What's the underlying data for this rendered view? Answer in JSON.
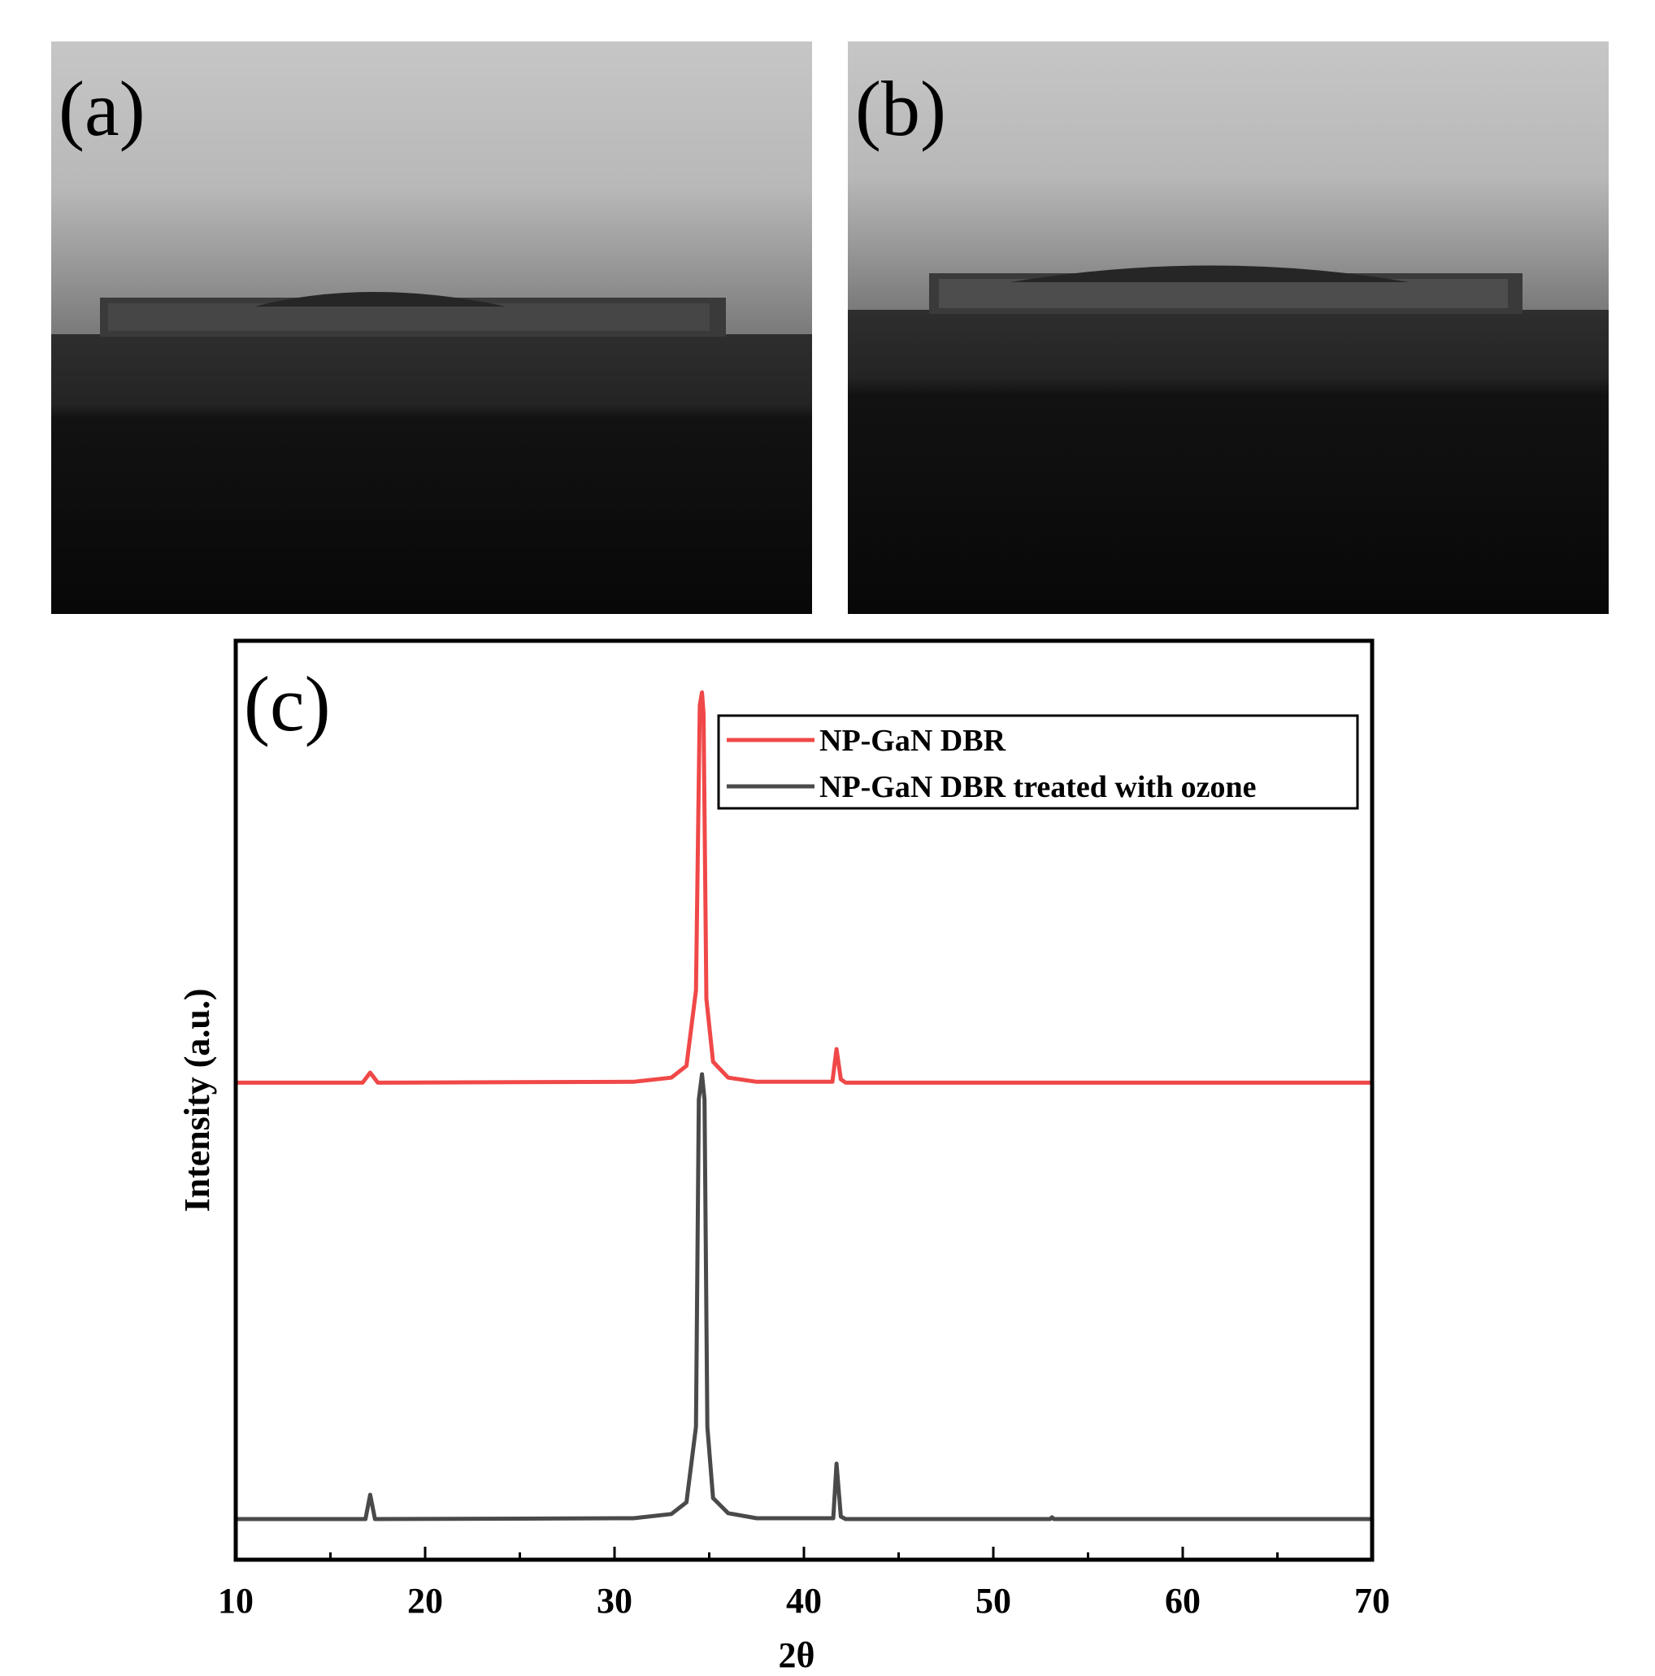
{
  "panels": {
    "a": {
      "label": "(a)"
    },
    "b": {
      "label": "(b)"
    },
    "c": {
      "label": "(c)"
    }
  },
  "colors": {
    "series_1": "#f04848",
    "series_2": "#4a4a4a",
    "axis": "#000000"
  },
  "chart_data": {
    "type": "line",
    "title": "",
    "xlabel": "2θ",
    "ylabel": "Intensity (a.u.)",
    "xlim": [
      10,
      70
    ],
    "xticks": [
      10,
      20,
      30,
      40,
      50,
      60,
      70
    ],
    "xtick_labels": [
      "10",
      "20",
      "30",
      "40",
      "50",
      "60",
      "70"
    ],
    "y_ticks_shown": false,
    "grid": false,
    "legend": {
      "position": "top-right",
      "entries": [
        "NP-GaN DBR",
        "NP-GaN DBR treated with ozone"
      ]
    },
    "series": [
      {
        "name": "NP-GaN DBR",
        "color": "#f04848",
        "baseline": 0.52,
        "points": [
          [
            10,
            0.52
          ],
          [
            16.7,
            0.52
          ],
          [
            17.1,
            0.532
          ],
          [
            17.5,
            0.52
          ],
          [
            31.0,
            0.521
          ],
          [
            33.0,
            0.526
          ],
          [
            33.8,
            0.54
          ],
          [
            34.3,
            0.63
          ],
          [
            34.5,
            0.97
          ],
          [
            34.62,
            0.985
          ],
          [
            34.7,
            0.96
          ],
          [
            34.85,
            0.62
          ],
          [
            35.2,
            0.545
          ],
          [
            36.0,
            0.526
          ],
          [
            37.5,
            0.521
          ],
          [
            41.5,
            0.521
          ],
          [
            41.72,
            0.56
          ],
          [
            41.95,
            0.524
          ],
          [
            42.2,
            0.52
          ],
          [
            70,
            0.52
          ]
        ]
      },
      {
        "name": "NP-GaN DBR treated with ozone",
        "color": "#4a4a4a",
        "baseline": 0.0,
        "points": [
          [
            10,
            0.0
          ],
          [
            16.85,
            0.0
          ],
          [
            17.1,
            0.029
          ],
          [
            17.35,
            0.0
          ],
          [
            31.0,
            0.001
          ],
          [
            33.0,
            0.006
          ],
          [
            33.8,
            0.02
          ],
          [
            34.3,
            0.11
          ],
          [
            34.45,
            0.5
          ],
          [
            34.62,
            0.53
          ],
          [
            34.75,
            0.5
          ],
          [
            34.9,
            0.11
          ],
          [
            35.2,
            0.025
          ],
          [
            36.0,
            0.007
          ],
          [
            37.5,
            0.001
          ],
          [
            41.55,
            0.001
          ],
          [
            41.72,
            0.066
          ],
          [
            41.95,
            0.003
          ],
          [
            42.2,
            0.0
          ],
          [
            53.0,
            0.0
          ],
          [
            53.1,
            0.002
          ],
          [
            53.2,
            0.0
          ],
          [
            70,
            0.0
          ]
        ]
      }
    ]
  }
}
